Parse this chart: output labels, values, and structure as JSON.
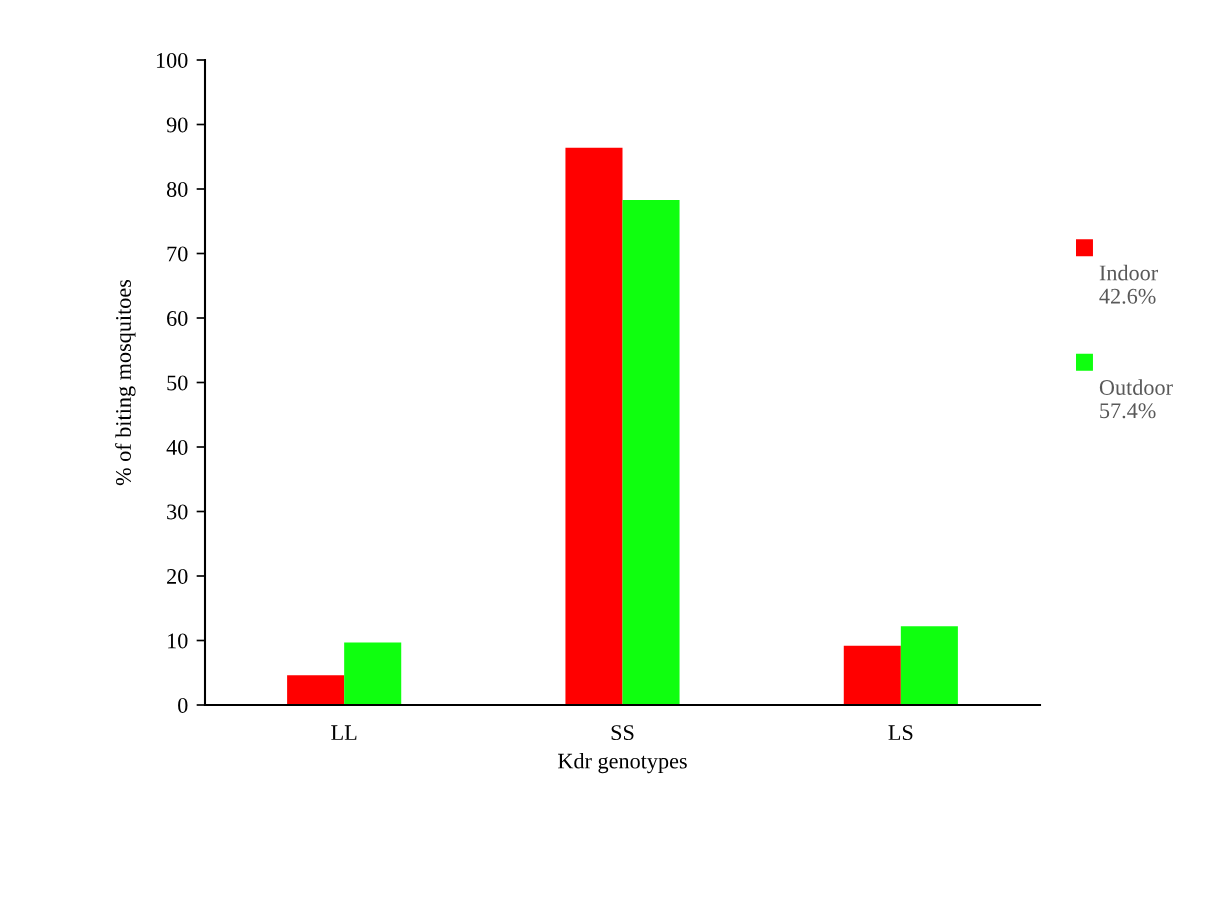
{
  "chart_data": {
    "type": "bar",
    "xlabel": "Kdr genotypes",
    "ylabel": "% of biting mosquitoes",
    "categories": [
      "LL",
      "SS",
      "LS"
    ],
    "series": [
      {
        "name": "Indoor\n42.6%",
        "color": "#ff0000",
        "values": [
          4.6,
          86.4,
          9.2
        ]
      },
      {
        "name": "Outdoor\n57.4%",
        "color": "#0fff0f",
        "values": [
          9.7,
          78.3,
          12.2
        ]
      }
    ],
    "ylim": [
      0,
      100
    ],
    "yticks": [
      0,
      10,
      20,
      30,
      40,
      50,
      60,
      70,
      80,
      90,
      100
    ],
    "grid": false,
    "legend": "right"
  }
}
